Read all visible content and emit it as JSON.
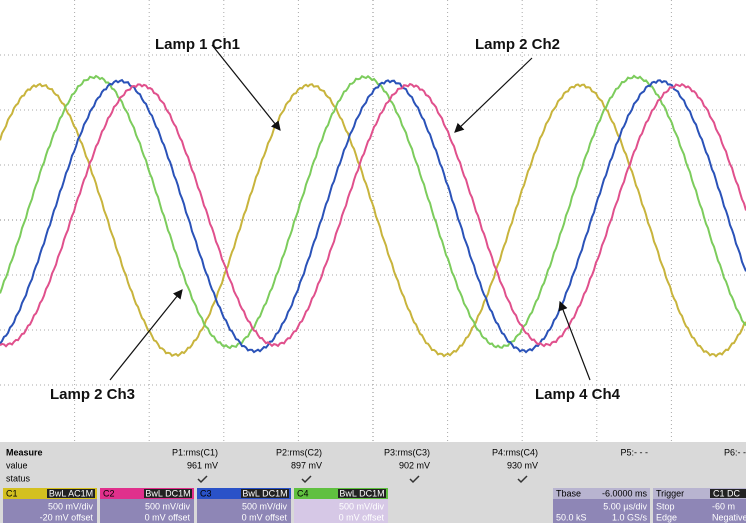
{
  "annotations": [
    "Lamp 1 Ch1",
    "Lamp 2 Ch2",
    "Lamp 2 Ch3",
    "Lamp 4 Ch4"
  ],
  "measure": {
    "title": "Measure",
    "row_labels": [
      "value",
      "status"
    ],
    "params": [
      {
        "name": "P1:rms(C1)",
        "value": "961 mV"
      },
      {
        "name": "P2:rms(C2)",
        "value": "897 mV"
      },
      {
        "name": "P3:rms(C3)",
        "value": "902 mV"
      },
      {
        "name": "P4:rms(C4)",
        "value": "930 mV"
      },
      {
        "name": "P5:- - -"
      },
      {
        "name": "P6:- -"
      }
    ]
  },
  "channels": [
    {
      "name": "C1",
      "coupling": "BwL AC1M",
      "scale": "500 mV/div",
      "offset": "-20 mV offset"
    },
    {
      "name": "C2",
      "coupling": "BwL DC1M",
      "scale": "500 mV/div",
      "offset": "0 mV offset"
    },
    {
      "name": "C3",
      "coupling": "BwL DC1M",
      "scale": "500 mV/div",
      "offset": "0 mV offset"
    },
    {
      "name": "C4",
      "coupling": "BwL DC1M",
      "scale": "500 mV/div",
      "offset": "0 mV offset"
    }
  ],
  "timebase": {
    "title": "Tbase",
    "delay": "-6.0000 ms",
    "scale": "5.00 µs/div",
    "samples": "50.0 kS",
    "rate": "1.0 GS/s"
  },
  "trigger": {
    "title": "Trigger",
    "source": "C1 DC",
    "mode": "Stop",
    "level": "-60 m",
    "type": "Edge",
    "slope": "Negative"
  }
}
